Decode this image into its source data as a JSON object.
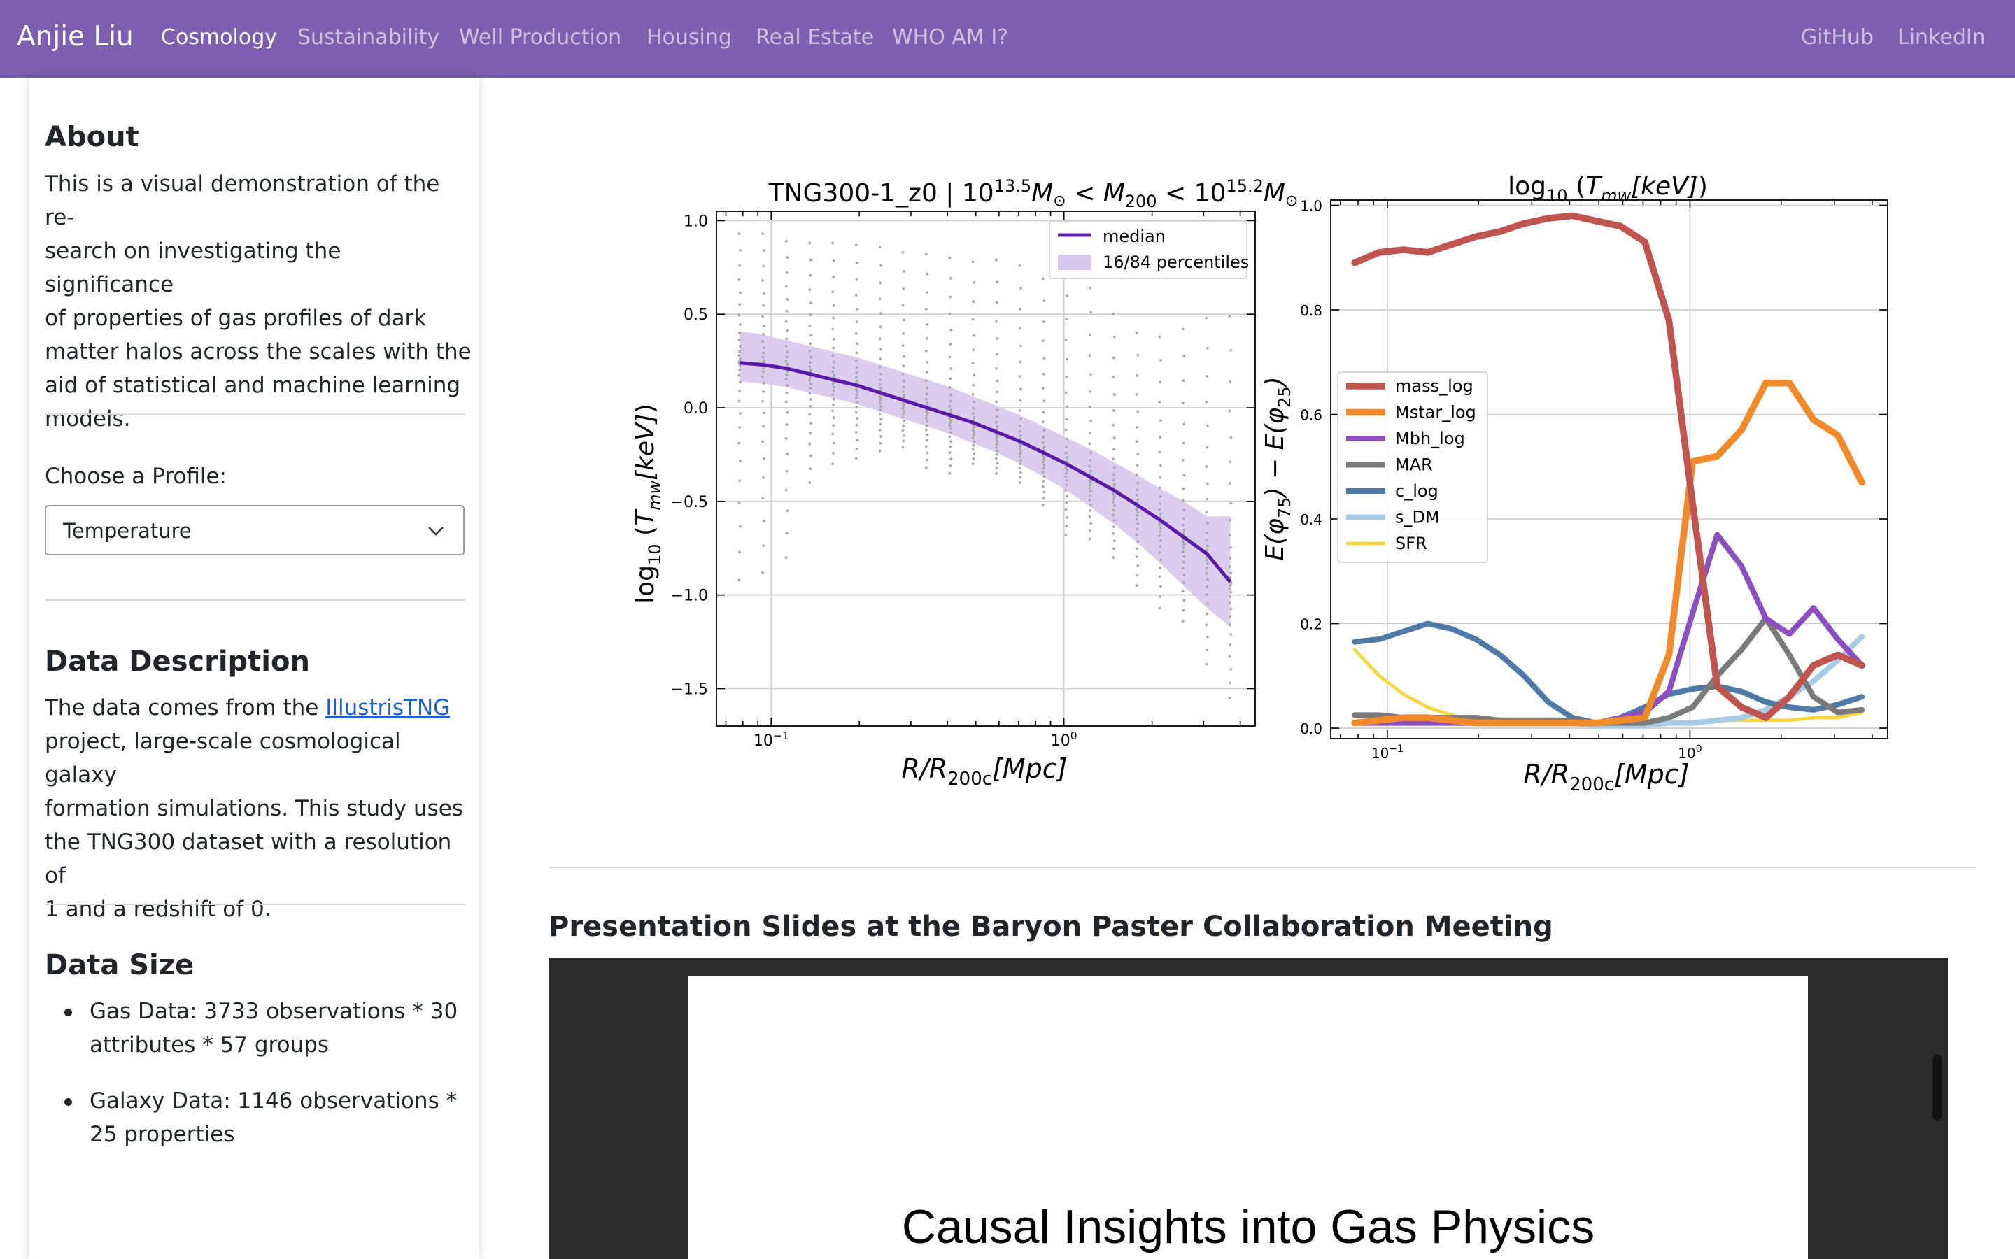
{
  "navbar": {
    "brand": "Anjie Liu",
    "items": [
      "Cosmology",
      "Sustainability",
      "Well Production",
      "Housing",
      "Real Estate",
      "WHO AM I?"
    ],
    "right_items": [
      "GitHub",
      "LinkedIn"
    ],
    "bg_color": "#7e5eae"
  },
  "sidebar": {
    "about_title": "About",
    "about_lines": [
      "This is a visual demonstration of the re-",
      "search on investigating the significance",
      "of properties of gas profiles of dark",
      "matter halos across the scales with the",
      "aid of statistical and machine learning",
      "models."
    ],
    "choose_label": "Choose a Profile:",
    "profile_value": "Temperature",
    "data_desc_title": "Data Description",
    "data_desc": {
      "pre": "The data comes from the ",
      "link": "IllustrisTNG",
      "lines_after": [
        "project, large-scale cosmological galaxy",
        "formation simulations. This study uses",
        "the TNG300 dataset with a resolution of",
        "1 and a redshift of 0."
      ]
    },
    "data_size_title": "Data Size",
    "data_size_items": [
      [
        "Gas Data: 3733 observations * 30",
        "attributes * 57 groups"
      ],
      [
        "Galaxy Data: 1146 observations *",
        "25 properties"
      ]
    ]
  },
  "main": {
    "slides_title": "Presentation Slides at the Baryon Paster Collaboration Meeting",
    "slide_text": "Causal Insights into Gas Physics"
  },
  "chart_data": [
    {
      "type": "line",
      "title": "TNG300-1_z0 | 10^13.5 M⊙ < M200 < 10^15.2 M⊙",
      "title_parts": {
        "pre": "TNG300-1_z0 | 10",
        "e1": "13.5",
        "m1": "M",
        "o1": "⊙",
        "lt1": " < ",
        "m2": "M",
        "s2": "200",
        "lt2": " < 10",
        "e2": "15.2",
        "m3": "M",
        "o3": "⊙"
      },
      "xlabel": "R/R200c[Mpc]",
      "ylabel": "log10 (Tmw[keV])",
      "xscale": "log",
      "xlim": [
        0.065,
        4.5
      ],
      "ylim": [
        -1.7,
        1.05
      ],
      "xticks": [
        {
          "v": 0.1,
          "b": "10",
          "e": "−1"
        },
        {
          "v": 1,
          "b": "10",
          "e": "0"
        }
      ],
      "yticks": [
        {
          "v": 1.0,
          "l": "1.0"
        },
        {
          "v": 0.5,
          "l": "0.5"
        },
        {
          "v": 0.0,
          "l": "0.0"
        },
        {
          "v": -0.5,
          "l": "−0.5"
        },
        {
          "v": -1.0,
          "l": "−1.0"
        },
        {
          "v": -1.5,
          "l": "−1.5"
        }
      ],
      "grid": true,
      "legend_position": "top-right",
      "x": [
        0.078,
        0.094,
        0.113,
        0.136,
        0.163,
        0.196,
        0.236,
        0.283,
        0.34,
        0.409,
        0.491,
        0.59,
        0.709,
        0.852,
        1.02,
        1.23,
        1.48,
        1.78,
        2.13,
        2.56,
        3.08,
        3.7
      ],
      "series": [
        {
          "name": "median",
          "color": "#5a1aa8",
          "values": [
            0.24,
            0.23,
            0.21,
            0.18,
            0.15,
            0.12,
            0.08,
            0.04,
            0.0,
            -0.04,
            -0.08,
            -0.13,
            -0.18,
            -0.24,
            -0.3,
            -0.37,
            -0.44,
            -0.52,
            -0.6,
            -0.69,
            -0.78,
            -0.93
          ]
        },
        {
          "name": "16/84 percentiles",
          "color": "#d8c8ec",
          "band": true,
          "lower": [
            0.14,
            0.13,
            0.11,
            0.08,
            0.05,
            0.02,
            -0.02,
            -0.06,
            -0.1,
            -0.14,
            -0.19,
            -0.24,
            -0.3,
            -0.37,
            -0.44,
            -0.53,
            -0.62,
            -0.72,
            -0.83,
            -0.95,
            -1.07,
            -1.17
          ],
          "upper": [
            0.41,
            0.39,
            0.36,
            0.33,
            0.3,
            0.27,
            0.23,
            0.19,
            0.15,
            0.11,
            0.06,
            0.01,
            -0.04,
            -0.1,
            -0.16,
            -0.22,
            -0.29,
            -0.36,
            -0.43,
            -0.5,
            -0.58,
            -0.58
          ]
        }
      ],
      "scatter_ranges": [
        [
          -0.92,
          0.93
        ],
        [
          -0.88,
          0.93
        ],
        [
          -0.8,
          0.89
        ],
        [
          -0.4,
          0.88
        ],
        [
          -0.3,
          0.88
        ],
        [
          -0.27,
          0.87
        ],
        [
          -0.23,
          0.86
        ],
        [
          -0.21,
          0.83
        ],
        [
          -0.32,
          0.82
        ],
        [
          -0.35,
          0.8
        ],
        [
          -0.3,
          0.78
        ],
        [
          -0.35,
          0.79
        ],
        [
          -0.4,
          0.76
        ],
        [
          -0.52,
          0.69
        ],
        [
          -0.68,
          0.73
        ],
        [
          -0.7,
          0.64
        ],
        [
          -0.8,
          0.5
        ],
        [
          -0.95,
          0.4
        ],
        [
          -1.07,
          0.38
        ],
        [
          -1.14,
          0.42
        ],
        [
          -1.37,
          0.48
        ],
        [
          -1.55,
          0.49
        ]
      ]
    },
    {
      "type": "line",
      "title": "log10 (Tmw[keV])",
      "title_parts": {
        "pre": "log",
        "sub": "10",
        "mid": " (",
        "t": "T",
        "ts": "mw",
        "unit": "[keV]",
        "post": ")"
      },
      "xlabel": "R/R200c[Mpc]",
      "ylabel": "E(φ75) − E(φ25)",
      "xscale": "log",
      "xlim": [
        0.065,
        4.5
      ],
      "ylim": [
        -0.02,
        1.01
      ],
      "xticks": [
        {
          "v": 0.1,
          "b": "10",
          "e": "−1"
        },
        {
          "v": 1,
          "b": "10",
          "e": "0"
        }
      ],
      "yticks": [
        {
          "v": 0.0,
          "l": "0.0"
        },
        {
          "v": 0.2,
          "l": "0.2"
        },
        {
          "v": 0.4,
          "l": "0.4"
        },
        {
          "v": 0.6,
          "l": "0.6"
        },
        {
          "v": 0.8,
          "l": "0.8"
        },
        {
          "v": 1.0,
          "l": "1.0"
        }
      ],
      "grid": true,
      "legend_position": "center-left",
      "x": [
        0.078,
        0.094,
        0.113,
        0.136,
        0.163,
        0.196,
        0.236,
        0.283,
        0.34,
        0.409,
        0.491,
        0.59,
        0.709,
        0.852,
        1.02,
        1.23,
        1.48,
        1.78,
        2.13,
        2.56,
        3.08,
        3.7
      ],
      "series": [
        {
          "name": "mass_log",
          "color": "#c0544f",
          "width": 6,
          "values": [
            0.89,
            0.91,
            0.915,
            0.91,
            0.925,
            0.94,
            0.95,
            0.965,
            0.975,
            0.98,
            0.97,
            0.96,
            0.93,
            0.78,
            0.43,
            0.08,
            0.04,
            0.02,
            0.06,
            0.12,
            0.14,
            0.12
          ]
        },
        {
          "name": "Mstar_log",
          "color": "#f08a2a",
          "width": 6,
          "values": [
            0.01,
            0.015,
            0.02,
            0.02,
            0.015,
            0.01,
            0.01,
            0.01,
            0.01,
            0.01,
            0.01,
            0.015,
            0.02,
            0.14,
            0.51,
            0.52,
            0.57,
            0.66,
            0.66,
            0.59,
            0.56,
            0.47
          ]
        },
        {
          "name": "Mbh_log",
          "color": "#8b4fc2",
          "width": 5,
          "values": [
            0.01,
            0.01,
            0.01,
            0.01,
            0.01,
            0.01,
            0.01,
            0.01,
            0.01,
            0.01,
            0.01,
            0.02,
            0.03,
            0.07,
            0.22,
            0.37,
            0.31,
            0.21,
            0.18,
            0.23,
            0.17,
            0.12
          ]
        },
        {
          "name": "MAR",
          "color": "#7a7a7a",
          "width": 5,
          "values": [
            0.025,
            0.025,
            0.02,
            0.02,
            0.02,
            0.02,
            0.015,
            0.015,
            0.015,
            0.015,
            0.01,
            0.01,
            0.01,
            0.02,
            0.04,
            0.1,
            0.15,
            0.21,
            0.14,
            0.06,
            0.03,
            0.035
          ]
        },
        {
          "name": "c_log",
          "color": "#4f7aa8",
          "width": 5,
          "values": [
            0.165,
            0.17,
            0.185,
            0.2,
            0.19,
            0.17,
            0.14,
            0.1,
            0.05,
            0.02,
            0.01,
            0.02,
            0.04,
            0.065,
            0.075,
            0.08,
            0.07,
            0.05,
            0.04,
            0.035,
            0.045,
            0.06
          ]
        },
        {
          "name": "s_DM",
          "color": "#a8cce6",
          "width": 5,
          "values": [
            0.01,
            0.01,
            0.01,
            0.01,
            0.01,
            0.01,
            0.01,
            0.01,
            0.01,
            0.01,
            0.005,
            0.005,
            0.005,
            0.01,
            0.01,
            0.015,
            0.02,
            0.035,
            0.06,
            0.09,
            0.13,
            0.175
          ]
        },
        {
          "name": "SFR",
          "color": "#f5d742",
          "width": 3,
          "values": [
            0.15,
            0.1,
            0.065,
            0.04,
            0.025,
            0.015,
            0.01,
            0.01,
            0.01,
            0.01,
            0.01,
            0.01,
            0.01,
            0.01,
            0.01,
            0.015,
            0.015,
            0.015,
            0.015,
            0.02,
            0.02,
            0.03
          ]
        }
      ]
    }
  ]
}
